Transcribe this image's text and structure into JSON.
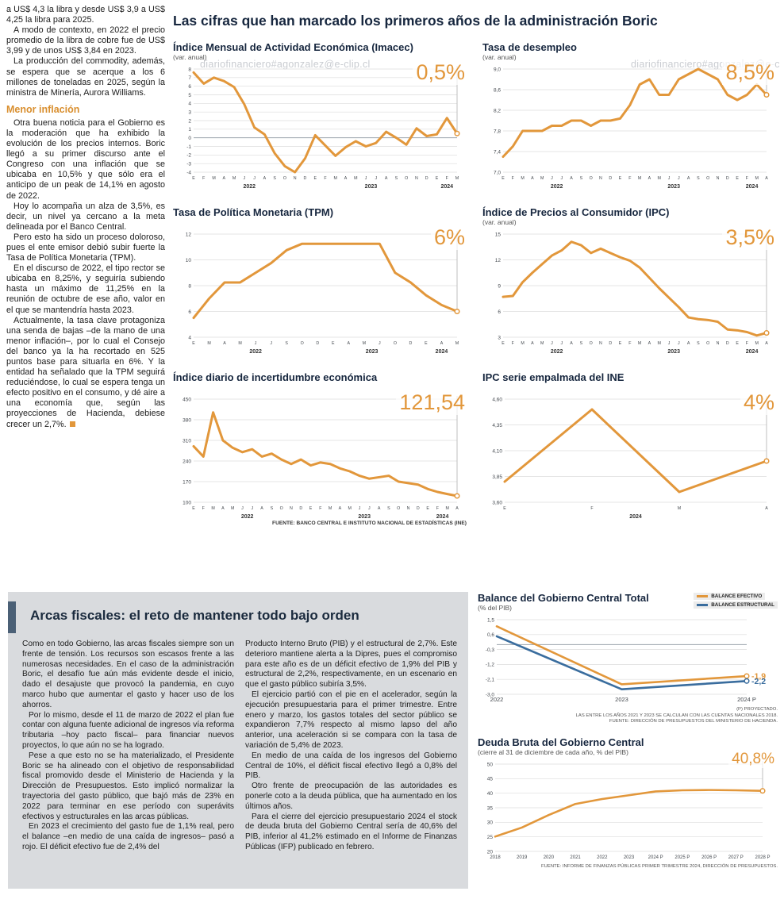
{
  "watermark": "diariofinanciero#agonzalez@e-clip.cl",
  "colors": {
    "accent_orange": "#e2973b",
    "line_blue": "#3a6d9e",
    "title_navy": "#16263e"
  },
  "main_title": "Las cifras que han marcado los primeros años de la administración Boric",
  "charts_source_note": "FUENTE: BANCO CENTRAL E INSTITUTO NACIONAL DE ESTADÍSTICAS (INE)",
  "sidebar": {
    "intro_paragraphs": [
      "a US$ 4,3 la libra y desde US$ 3,9 a US$ 4,25 la libra para 2025.",
      "A modo de contexto, en 2022 el precio promedio de la libra de cobre fue de US$ 3,99 y de unos US$ 3,84 en 2023.",
      "La producción del commodity, además, se espera que se acerque a los 6 millones de toneladas en 2025, según la ministra de Minería, Aurora Williams."
    ],
    "section_heading": "Menor inflación",
    "body_paragraphs": [
      "Otra buena noticia para el Gobierno es la moderación que ha exhibido la evolución de los precios internos. Boric llegó a su primer discurso ante el Congreso con una inflación que se ubicaba en 10,5% y que sólo era el anticipo de un peak de 14,1% en agosto de 2022.",
      "Hoy lo acompaña un alza de 3,5%, es decir, un nivel ya cercano a la meta delineada por el Banco Central.",
      "Pero esto ha sido un proceso doloroso, pues el ente emisor debió subir fuerte la Tasa de Política Monetaria (TPM).",
      "En el discurso de 2022, el tipo rector se ubicaba en 8,25%, y seguiría subiendo hasta un máximo de 11,25% en la reunión de octubre de ese año, valor en el que se mantendría hasta 2023.",
      "Actualmente, la tasa clave protagoniza una senda de bajas –de la mano de una menor inflación–, por lo cual el Consejo del banco ya la ha recortado en 525 puntos base para situarla en 6%. Y la entidad ha señalado que la TPM seguirá reduciéndose, lo cual se espera tenga un efecto positivo en el consumo, y dé aire a una economía que, según las proyecciones de Hacienda, debiese crecer un 2,7%."
    ]
  },
  "fiscal_section": {
    "heading": "Arcas fiscales: el reto de mantener todo bajo orden",
    "col1_paragraphs": [
      "Como en todo Gobierno, las arcas fiscales siempre son un frente de tensión. Los recursos son escasos frente a las numerosas necesidades. En el caso de la administración Boric, el desafío fue aún más evidente desde el inicio, dado el desajuste que provocó la pandemia, en cuyo marco hubo que aumentar el gasto y hacer uso de los ahorros.",
      "Por lo mismo, desde el 11 de marzo de 2022 el plan fue contar con alguna fuente adicional de ingresos vía reforma tributaria –hoy pacto fiscal– para financiar nuevos proyectos, lo que aún no se ha logrado.",
      "Pese a que esto no se ha materializado, el Presidente Boric se ha alineado con el objetivo de responsabilidad fiscal promovido desde el Ministerio de Hacienda y la Dirección de Presupuestos. Esto implicó normalizar la trayectoria del gasto público, que bajó más de 23% en 2022 para terminar en ese período con superávits efectivos y estructurales en las arcas públicas.",
      "En 2023 el crecimiento del gasto fue de 1,1% real, pero el balance –en medio de una caída de ingresos– pasó a rojo. El déficit efectivo fue de 2,4% del"
    ],
    "col2_paragraphs": [
      "Producto Interno Bruto (PIB) y el estructural de 2,7%. Este deterioro mantiene alerta a la Dipres, pues el compromiso para este año es de un déficit efectivo de 1,9% del PIB y estructural de 2,2%, respectivamente, en un escenario en que el gasto público subiría 3,5%.",
      "El ejercicio partió con el pie en el acelerador, según la ejecución presupuestaria para el primer trimestre. Entre enero y marzo, los gastos totales del sector público se expandieron 7,7% respecto al mismo lapso del año anterior, una aceleración si se compara con la tasa de variación de 5,4% de 2023.",
      "En medio de una caída de los ingresos del Gobierno Central de 10%, el déficit fiscal efectivo llegó a 0,8% del PIB.",
      "Otro frente de preocupación de las autoridades es ponerle coto a la deuda pública, que ha aumentado en los últimos años.",
      "Para el cierre del ejercicio presupuestario 2024 el stock de deuda bruta del Gobierno Central sería de 40,6% del PIB, inferior al 41,2% estimado en el Informe de Finanzas Públicas (IFP) publicado en febrero."
    ]
  },
  "chart_data": [
    {
      "id": "imacec",
      "type": "line",
      "title": "Índice Mensual de Actividad Económica (Imacec)",
      "subtitle": "(var. anual)",
      "big_label": "0,5%",
      "ymin": -4,
      "ymax": 8,
      "yticks": [
        8,
        7,
        6,
        5,
        4,
        3,
        2,
        1,
        0,
        -1,
        -2,
        -3,
        -4
      ],
      "x": [
        "E",
        "F",
        "M",
        "A",
        "M",
        "J",
        "J",
        "A",
        "S",
        "O",
        "N",
        "D",
        "E",
        "F",
        "M",
        "A",
        "M",
        "J",
        "J",
        "A",
        "S",
        "O",
        "N",
        "D",
        "E",
        "F",
        "M"
      ],
      "years": [
        {
          "label": "2022",
          "from": 0,
          "to": 11
        },
        {
          "label": "2023",
          "from": 12,
          "to": 23
        },
        {
          "label": "2024",
          "from": 24,
          "to": 26
        }
      ],
      "series": [
        {
          "name": "Imacec",
          "color": "#e2973b",
          "values": [
            7.6,
            6.3,
            7.0,
            6.6,
            5.9,
            3.9,
            1.2,
            0.4,
            -1.8,
            -3.3,
            -4.0,
            -2.4,
            0.3,
            -0.9,
            -2.1,
            -1.1,
            -0.4,
            -1.0,
            -0.6,
            0.7,
            0.0,
            -0.8,
            1.1,
            0.2,
            0.4,
            2.3,
            0.5
          ]
        }
      ]
    },
    {
      "id": "desempleo",
      "type": "line",
      "title": "Tasa de desempleo",
      "subtitle": "(var. anual)",
      "big_label": "8,5%",
      "ymin": 7.0,
      "ymax": 9.0,
      "yticks": [
        9.0,
        8.6,
        8.2,
        7.8,
        7.4,
        7.0
      ],
      "ylabels": [
        "9,0",
        "8,6",
        "8,2",
        "7,8",
        "7,4",
        "7,0"
      ],
      "x": [
        "E",
        "F",
        "M",
        "A",
        "M",
        "J",
        "J",
        "A",
        "S",
        "O",
        "N",
        "D",
        "E",
        "F",
        "M",
        "A",
        "M",
        "J",
        "J",
        "A",
        "S",
        "O",
        "N",
        "D",
        "E",
        "F",
        "M",
        "A"
      ],
      "years": [
        {
          "label": "2022",
          "from": 0,
          "to": 11
        },
        {
          "label": "2023",
          "from": 12,
          "to": 23
        },
        {
          "label": "2024",
          "from": 24,
          "to": 27
        }
      ],
      "series": [
        {
          "name": "Tasa de desempleo",
          "color": "#e2973b",
          "values": [
            7.3,
            7.5,
            7.8,
            7.8,
            7.8,
            7.9,
            7.9,
            8.0,
            8.0,
            7.9,
            8.0,
            8.0,
            8.04,
            8.3,
            8.7,
            8.8,
            8.5,
            8.5,
            8.8,
            8.9,
            9.0,
            8.9,
            8.8,
            8.5,
            8.4,
            8.5,
            8.7,
            8.5
          ]
        }
      ]
    },
    {
      "id": "tpm",
      "type": "line",
      "title": "Tasa de Política Monetaria (TPM)",
      "subtitle": "",
      "big_label": "6%",
      "ymin": 4,
      "ymax": 12,
      "yticks": [
        12,
        10,
        8,
        6,
        4
      ],
      "x": [
        "E",
        "M",
        "A",
        "M",
        "J",
        "J",
        "S",
        "O",
        "D",
        "E",
        "A",
        "M",
        "J",
        "O",
        "D",
        "E",
        "A",
        "M"
      ],
      "years": [
        {
          "label": "2022",
          "from": 0,
          "to": 8
        },
        {
          "label": "2023",
          "from": 9,
          "to": 14
        },
        {
          "label": "2024",
          "from": 15,
          "to": 17
        }
      ],
      "series": [
        {
          "name": "TPM",
          "color": "#e2973b",
          "values": [
            5.5,
            7.0,
            8.25,
            8.25,
            9.0,
            9.75,
            10.75,
            11.25,
            11.25,
            11.25,
            11.25,
            11.25,
            11.25,
            9.0,
            8.25,
            7.25,
            6.5,
            6.0
          ]
        }
      ]
    },
    {
      "id": "ipc",
      "type": "line",
      "title": "Índice de Precios al Consumidor (IPC)",
      "subtitle": "(var. anual)",
      "big_label": "3,5%",
      "ymin": 3,
      "ymax": 15,
      "yticks": [
        15,
        12,
        9,
        6,
        3
      ],
      "x": [
        "E",
        "F",
        "M",
        "A",
        "M",
        "J",
        "J",
        "A",
        "S",
        "O",
        "N",
        "D",
        "E",
        "F",
        "M",
        "A",
        "M",
        "J",
        "J",
        "A",
        "S",
        "O",
        "N",
        "D",
        "E",
        "F",
        "M",
        "A"
      ],
      "years": [
        {
          "label": "2022",
          "from": 0,
          "to": 11
        },
        {
          "label": "2023",
          "from": 12,
          "to": 23
        },
        {
          "label": "2024",
          "from": 24,
          "to": 27
        }
      ],
      "series": [
        {
          "name": "IPC",
          "color": "#e2973b",
          "values": [
            7.7,
            7.8,
            9.4,
            10.5,
            11.5,
            12.5,
            13.1,
            14.1,
            13.7,
            12.8,
            13.3,
            12.8,
            12.3,
            11.9,
            11.1,
            9.9,
            8.7,
            7.6,
            6.5,
            5.3,
            5.1,
            5.0,
            4.8,
            3.9,
            3.8,
            3.6,
            3.2,
            3.5
          ]
        }
      ]
    },
    {
      "id": "incertidumbre",
      "type": "line",
      "title": "Índice diario de incertidumbre económica",
      "subtitle": "",
      "big_label": "121,54",
      "ymin": 100,
      "ymax": 450,
      "yticks": [
        450,
        380,
        310,
        240,
        170,
        100
      ],
      "x": [
        "E",
        "F",
        "M",
        "A",
        "M",
        "J",
        "J",
        "A",
        "S",
        "O",
        "N",
        "D",
        "E",
        "F",
        "M",
        "A",
        "M",
        "J",
        "J",
        "A",
        "S",
        "O",
        "N",
        "D",
        "E",
        "F",
        "M",
        "A"
      ],
      "years": [
        {
          "label": "2022",
          "from": 0,
          "to": 11
        },
        {
          "label": "2023",
          "from": 12,
          "to": 23
        },
        {
          "label": "2024",
          "from": 24,
          "to": 27
        }
      ],
      "series": [
        {
          "name": "Incertidumbre económica",
          "color": "#e2973b",
          "values": [
            290,
            255,
            405,
            310,
            285,
            270,
            280,
            255,
            265,
            245,
            230,
            245,
            225,
            235,
            230,
            215,
            205,
            190,
            180,
            185,
            190,
            170,
            165,
            160,
            145,
            135,
            128,
            121.54
          ]
        }
      ]
    },
    {
      "id": "ipc_ine",
      "type": "line",
      "title": "IPC serie empalmada del INE",
      "subtitle": "",
      "big_label": "4%",
      "ymin": 3.6,
      "ymax": 4.6,
      "yticks": [
        4.6,
        4.35,
        4.1,
        3.85,
        3.6
      ],
      "ylabels": [
        "4,60",
        "4,35",
        "4,10",
        "3,85",
        "3,60"
      ],
      "x": [
        "E",
        "F",
        "M",
        "A"
      ],
      "years": [
        {
          "label": "2024",
          "from": 0,
          "to": 3
        }
      ],
      "series": [
        {
          "name": "IPC serie empalmada",
          "color": "#e2973b",
          "values": [
            3.8,
            4.5,
            3.7,
            4.0
          ]
        }
      ]
    },
    {
      "id": "balance",
      "type": "line",
      "title": "Balance del Gobierno Central Total",
      "subtitle": "(% del PIB)",
      "ymin": -3.0,
      "ymax": 1.5,
      "yticks": [
        1.5,
        0.6,
        -0.3,
        -1.2,
        -2.1,
        -3.0
      ],
      "ylabels": [
        "1,5",
        "0,6",
        "-0,3",
        "-1,2",
        "-2,1",
        "-3,0"
      ],
      "x": [
        "2022",
        "2023",
        "2024 P"
      ],
      "series": [
        {
          "name": "BALANCE EFECTIVO",
          "color": "#e2973b",
          "values": [
            1.1,
            -2.4,
            -1.9
          ],
          "end_label": "-1,9"
        },
        {
          "name": "BALANCE ESTRUCTURAL",
          "color": "#3a6d9e",
          "values": [
            0.5,
            -2.7,
            -2.2
          ],
          "end_label": "-2,2"
        }
      ],
      "footnotes": [
        "(P) PROYECTADO.",
        "LAS ENTRE LOS AÑOS 2021 Y 2023 SE CALCULAN CON LAS CUENTAS NACIONALES 2018.",
        "FUENTE: DIRECCIÓN DE PRESUPUESTOS DEL MINISTERIO DE HACIENDA."
      ]
    },
    {
      "id": "deuda",
      "type": "line",
      "title": "Deuda Bruta del Gobierno Central",
      "subtitle": "(cierre al 31 de diciembre de cada año, % del PIB)",
      "big_label": "40,8%",
      "ymin": 20,
      "ymax": 50,
      "yticks": [
        50,
        45,
        40,
        35,
        30,
        25,
        20
      ],
      "x": [
        "2018",
        "2019",
        "2020",
        "2021",
        "2022",
        "2023",
        "2024 P",
        "2025 P",
        "2026 P",
        "2027 P",
        "2028 P"
      ],
      "series": [
        {
          "name": "Deuda bruta",
          "color": "#e2973b",
          "values": [
            25.1,
            28.2,
            32.5,
            36.3,
            38.0,
            39.3,
            40.6,
            41.0,
            41.1,
            41.0,
            40.8
          ]
        }
      ],
      "footnotes": [
        "FUENTE: INFORME DE FINANZAS PÚBLICAS PRIMER TRIMESTRE 2024, DIRECCIÓN DE PRESUPUESTOS."
      ]
    }
  ]
}
